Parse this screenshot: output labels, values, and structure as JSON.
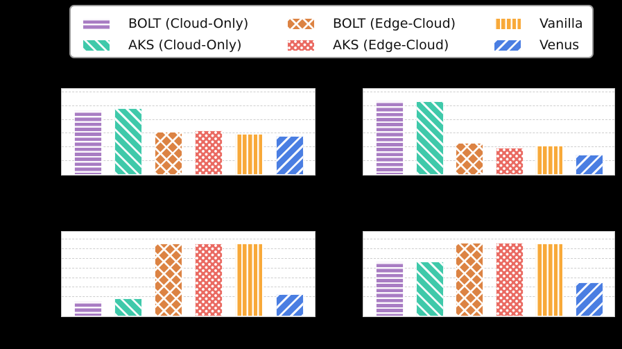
{
  "canvas": {
    "background": "#000000",
    "note": "axis tick labels, axis titles and subplot titles are not visible (rendered black on black background)"
  },
  "legend": {
    "entries": [
      {
        "label": "BOLT (Cloud-Only)",
        "color": "#A87CC3",
        "pattern": "horizontal-stripes"
      },
      {
        "label": "AKS (Cloud-Only)",
        "color": "#3FC9AA",
        "pattern": "back-diagonal"
      },
      {
        "label": "BOLT (Edge-Cloud)",
        "color": "#DC8343",
        "pattern": "crosshatch"
      },
      {
        "label": "AKS (Edge-Cloud)",
        "color": "#EA6A62",
        "pattern": "dots"
      },
      {
        "label": "Vanilla",
        "color": "#F8A939",
        "pattern": "vertical-stripes"
      },
      {
        "label": "Venus",
        "color": "#4A7EE2",
        "pattern": "forward-diagonal"
      }
    ]
  },
  "chart_data": [
    {
      "id": "top-left",
      "type": "bar",
      "categories": [
        "BOLT (Cloud-Only)",
        "AKS (Cloud-Only)",
        "BOLT (Edge-Cloud)",
        "AKS (Edge-Cloud)",
        "Vanilla",
        "Venus"
      ],
      "values": [
        4.7,
        4.85,
        3.15,
        3.25,
        2.95,
        2.8
      ],
      "ylim": [
        0,
        6.25
      ],
      "yticks": [
        1,
        2,
        3,
        4,
        5,
        6
      ],
      "grid": "horizontal-dashed",
      "title": "",
      "xlabel": "",
      "ylabel": ""
    },
    {
      "id": "top-right",
      "type": "bar",
      "categories": [
        "BOLT (Cloud-Only)",
        "AKS (Cloud-Only)",
        "BOLT (Edge-Cloud)",
        "AKS (Edge-Cloud)",
        "Vanilla",
        "Venus"
      ],
      "values": [
        5.4,
        5.35,
        2.3,
        1.95,
        2.1,
        1.45
      ],
      "ylim": [
        0,
        6.25
      ],
      "yticks": [
        1,
        2,
        3,
        4,
        5,
        6
      ],
      "grid": "horizontal-dashed",
      "title": "",
      "xlabel": "",
      "ylabel": ""
    },
    {
      "id": "bottom-left",
      "type": "bar",
      "categories": [
        "BOLT (Cloud-Only)",
        "AKS (Cloud-Only)",
        "BOLT (Edge-Cloud)",
        "AKS (Edge-Cloud)",
        "Vanilla",
        "Venus"
      ],
      "values": [
        1.6,
        1.9,
        7.6,
        7.6,
        7.6,
        2.3
      ],
      "ylim": [
        0,
        8.8
      ],
      "yticks": [
        2,
        3,
        4,
        5,
        6,
        7,
        8
      ],
      "grid": "horizontal-dashed",
      "title": "",
      "xlabel": "",
      "ylabel": ""
    },
    {
      "id": "bottom-right",
      "type": "bar",
      "categories": [
        "BOLT (Cloud-Only)",
        "AKS (Cloud-Only)",
        "BOLT (Edge-Cloud)",
        "AKS (Edge-Cloud)",
        "Vanilla",
        "Venus"
      ],
      "values": [
        5.7,
        5.7,
        7.65,
        7.65,
        7.6,
        3.5
      ],
      "ylim": [
        0,
        8.8
      ],
      "yticks": [
        2,
        3,
        4,
        5,
        6,
        7,
        8
      ],
      "grid": "horizontal-dashed",
      "title": "",
      "xlabel": "",
      "ylabel": ""
    }
  ]
}
